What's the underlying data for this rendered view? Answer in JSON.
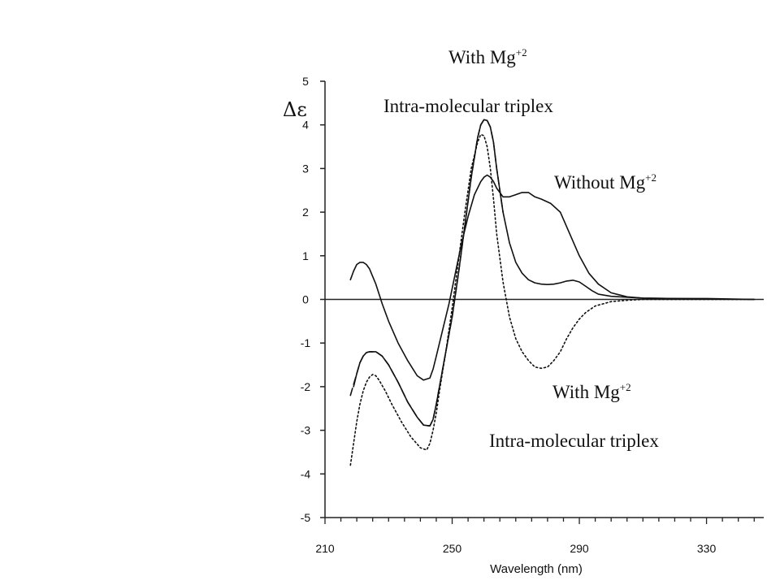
{
  "chart_data": {
    "type": "line",
    "title": "",
    "xlabel": "Wavelength (nm)",
    "ylabel": "Δε",
    "xlim": [
      210,
      348
    ],
    "ylim": [
      -5,
      5
    ],
    "x_ticks": [
      210,
      250,
      290,
      330
    ],
    "x_tick_labels": [
      "210",
      "250",
      "290",
      "330"
    ],
    "y_ticks": [
      5,
      4,
      3,
      2,
      1,
      0,
      -1,
      -2,
      -3,
      -4,
      -5
    ],
    "y_tick_labels": [
      "5",
      "4",
      "3",
      "2",
      "1",
      "0",
      "-1",
      "-2",
      "-3",
      "-4",
      "-5"
    ],
    "zero_line": true,
    "grid": false,
    "series": [
      {
        "style": "solid",
        "x": [
          218,
          219,
          220,
          221,
          222,
          223,
          224,
          226,
          228,
          230,
          233,
          236,
          239,
          241,
          243,
          244,
          245,
          247,
          249,
          251,
          253,
          255,
          257,
          259,
          260,
          261,
          262,
          263,
          264,
          266,
          268,
          270,
          272,
          274,
          276,
          278,
          281,
          284,
          287,
          290,
          293,
          296,
          300,
          305,
          310,
          320,
          330,
          345
        ],
        "y": [
          0.45,
          0.65,
          0.8,
          0.85,
          0.85,
          0.8,
          0.7,
          0.35,
          -0.1,
          -0.5,
          -1.0,
          -1.4,
          -1.75,
          -1.85,
          -1.8,
          -1.6,
          -1.3,
          -0.7,
          -0.1,
          0.6,
          1.3,
          1.9,
          2.4,
          2.7,
          2.8,
          2.85,
          2.8,
          2.7,
          2.55,
          2.35,
          2.35,
          2.4,
          2.45,
          2.45,
          2.35,
          2.3,
          2.2,
          2.0,
          1.5,
          1.0,
          0.6,
          0.35,
          0.15,
          0.06,
          0.03,
          0.02,
          0.02,
          0.0
        ]
      },
      {
        "style": "solid",
        "x": [
          219,
          220,
          221,
          222,
          223,
          224,
          226,
          228,
          230,
          233,
          236,
          239,
          241,
          243,
          244,
          245,
          246,
          248,
          250,
          252,
          254,
          256,
          258,
          259,
          260,
          261,
          262,
          263,
          264,
          266,
          268,
          270,
          272,
          274,
          276,
          278,
          280,
          282,
          284,
          286,
          288,
          290,
          292,
          294,
          296,
          300,
          305,
          310,
          320,
          330,
          345
        ],
        "y": [
          -2.0,
          -1.7,
          -1.45,
          -1.3,
          -1.22,
          -1.2,
          -1.2,
          -1.3,
          -1.5,
          -1.9,
          -2.35,
          -2.7,
          -2.88,
          -2.9,
          -2.75,
          -2.4,
          -2.0,
          -1.2,
          -0.4,
          0.6,
          1.7,
          2.8,
          3.7,
          4.0,
          4.12,
          4.1,
          3.95,
          3.6,
          3.0,
          2.0,
          1.3,
          0.85,
          0.6,
          0.45,
          0.38,
          0.35,
          0.34,
          0.35,
          0.38,
          0.42,
          0.44,
          0.4,
          0.3,
          0.2,
          0.12,
          0.07,
          0.05,
          0.03,
          0.02,
          0.01,
          0.0
        ]
      },
      {
        "style": "dashed",
        "x": [
          218,
          219,
          220,
          221,
          222,
          223,
          224,
          226,
          228,
          230,
          233,
          236,
          239,
          241,
          243,
          244,
          245,
          246,
          248,
          250,
          252,
          254,
          256,
          258,
          259,
          260,
          261,
          262,
          263,
          264,
          266
        ],
        "y": [
          -2.2,
          -1.95,
          -1.7,
          -1.45,
          -1.3,
          -1.22,
          -1.2,
          -1.2,
          -1.3,
          -1.5,
          -1.9,
          -2.35,
          -2.7,
          -2.88,
          -2.9,
          -2.75,
          -2.4,
          -2.0,
          -1.2,
          -0.4,
          0.6,
          1.7,
          2.8,
          3.7,
          4.0,
          4.12,
          4.1,
          3.95,
          3.6,
          3.0,
          2.0
        ]
      },
      {
        "style": "dotted",
        "x": [
          218,
          219,
          220,
          221,
          222,
          223,
          224,
          225,
          226,
          227,
          229,
          231,
          234,
          237,
          240,
          242,
          243,
          244,
          245,
          246,
          248,
          250,
          252,
          254,
          256,
          258,
          259,
          260,
          261,
          262,
          263,
          264,
          266,
          268,
          270,
          272,
          274,
          276,
          278,
          280,
          282,
          284,
          286,
          288,
          290,
          292,
          295,
          300,
          305,
          310,
          320,
          330,
          345
        ],
        "y": [
          -3.8,
          -3.3,
          -2.8,
          -2.4,
          -2.1,
          -1.9,
          -1.78,
          -1.72,
          -1.75,
          -1.85,
          -2.1,
          -2.4,
          -2.8,
          -3.15,
          -3.4,
          -3.45,
          -3.3,
          -3.0,
          -2.6,
          -2.1,
          -1.2,
          -0.2,
          0.9,
          2.0,
          3.0,
          3.6,
          3.78,
          3.75,
          3.5,
          3.0,
          2.3,
          1.5,
          0.4,
          -0.4,
          -0.9,
          -1.2,
          -1.4,
          -1.55,
          -1.58,
          -1.55,
          -1.4,
          -1.2,
          -0.9,
          -0.65,
          -0.45,
          -0.3,
          -0.15,
          -0.05,
          -0.02,
          0.0,
          0.0,
          0.0,
          0.0
        ]
      }
    ],
    "annotations": [
      {
        "text": "With Mg",
        "sup": "+2"
      },
      {
        "text": "Intra-molecular triplex"
      },
      {
        "text": "Without Mg",
        "sup": "+2"
      },
      {
        "text": "With Mg",
        "sup": "+2"
      },
      {
        "text": "Intra-molecular triplex"
      }
    ]
  }
}
